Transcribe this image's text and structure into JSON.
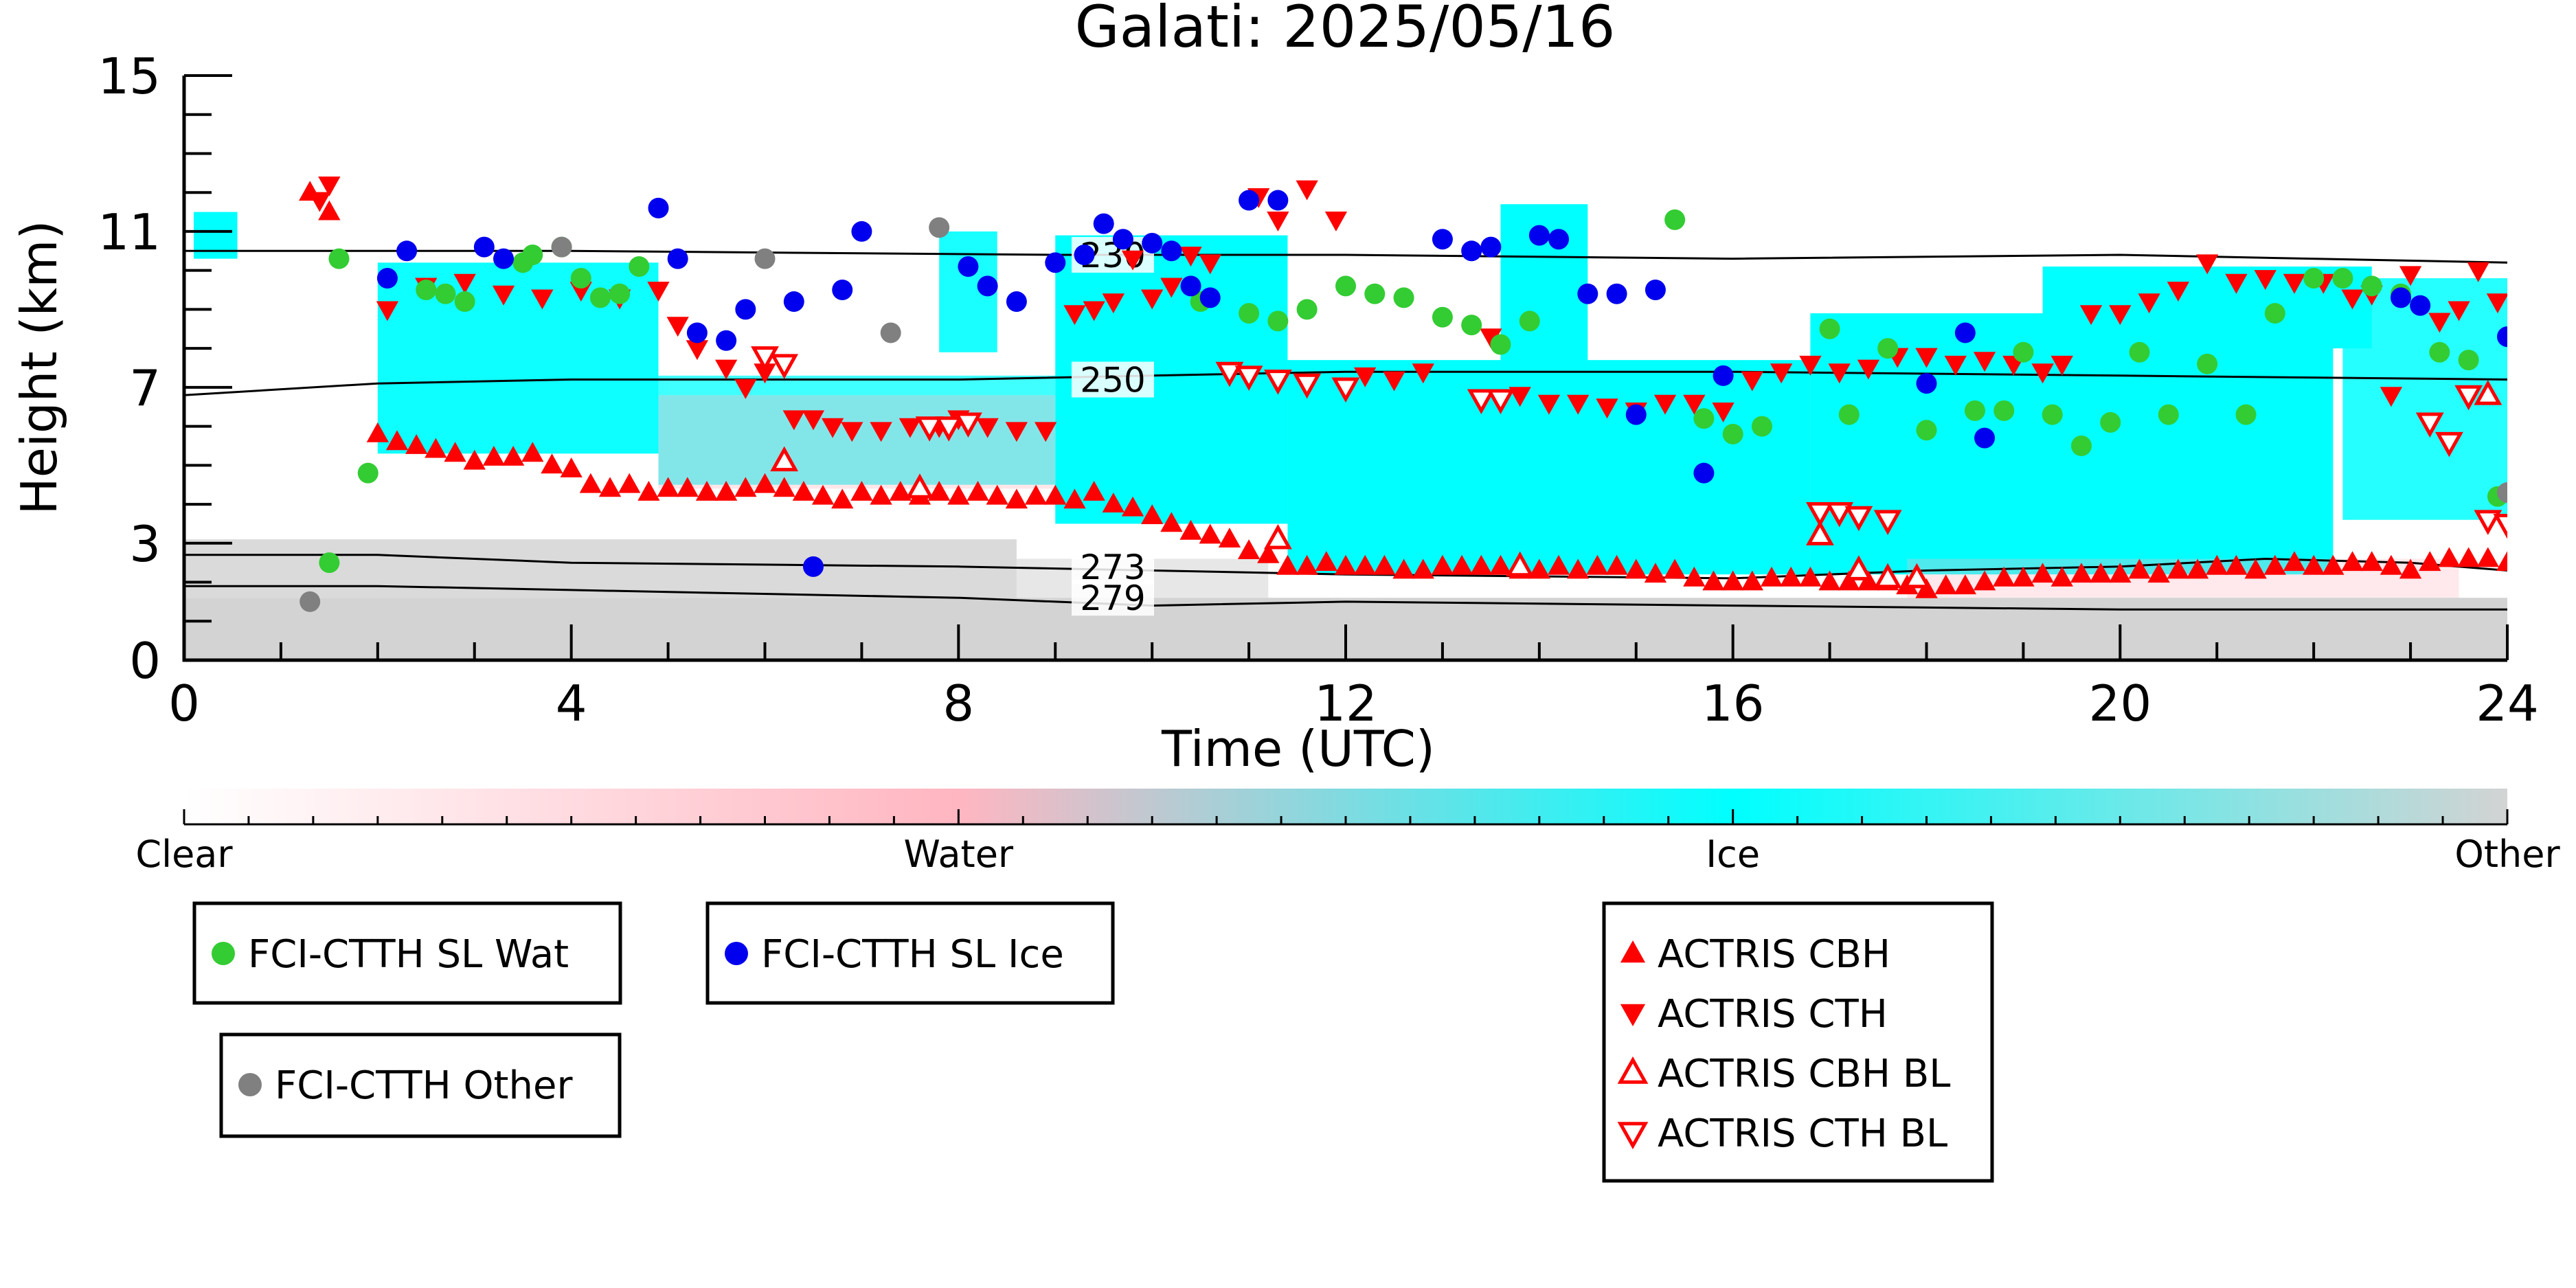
{
  "chart_data": {
    "type": "scatter",
    "title": "Galati: 2025/05/16",
    "xlabel": "Time (UTC)",
    "ylabel": "Height (km)",
    "xlim": [
      0,
      24
    ],
    "ylim": [
      0,
      15
    ],
    "x_ticks": [
      "0",
      "4",
      "8",
      "12",
      "16",
      "20",
      "24"
    ],
    "y_ticks": [
      "0",
      "3",
      "7",
      "11",
      "15"
    ],
    "grid": false,
    "colors": {
      "ice": "#00ffff",
      "water": "#ffb6c1",
      "other": "#d3d3d3",
      "fci_wat": "#33cc33",
      "fci_ice": "#0000ee",
      "fci_other": "#808080",
      "actris": "#ff0000"
    },
    "colorbar": {
      "labels": [
        "Clear",
        "Water",
        "Ice",
        "Other"
      ],
      "stops": [
        "#ffffff",
        "#ffb6c1",
        "#00ffff",
        "#d3d3d3"
      ]
    },
    "isotherms": [
      {
        "label": "230",
        "x": [
          0,
          4,
          9,
          12,
          16,
          20,
          24
        ],
        "y": [
          10.5,
          10.5,
          10.4,
          10.4,
          10.3,
          10.4,
          10.2
        ]
      },
      {
        "label": "250",
        "x": [
          0,
          2,
          4,
          8,
          10,
          12,
          14,
          16,
          20,
          24
        ],
        "y": [
          6.8,
          7.1,
          7.2,
          7.2,
          7.3,
          7.4,
          7.4,
          7.4,
          7.3,
          7.2
        ]
      },
      {
        "label": "273",
        "x": [
          0,
          2,
          4,
          8,
          10,
          12,
          16,
          18,
          20,
          21.5,
          23,
          24
        ],
        "y": [
          2.7,
          2.7,
          2.5,
          2.4,
          2.3,
          2.2,
          2.1,
          2.3,
          2.4,
          2.6,
          2.5,
          2.3
        ]
      },
      {
        "label": "279",
        "x": [
          0,
          2,
          4,
          8,
          10,
          12,
          16,
          20,
          24
        ],
        "y": [
          1.9,
          1.9,
          1.8,
          1.6,
          1.4,
          1.5,
          1.4,
          1.3,
          1.3
        ]
      }
    ],
    "series": [
      {
        "name": "FCI-CTTH SL Wat",
        "marker": "circle",
        "color": "#33cc33",
        "x": [
          1.5,
          1.6,
          1.9,
          2.5,
          2.7,
          2.9,
          3.5,
          3.6,
          3.9,
          4.1,
          4.3,
          4.5,
          4.7,
          10.5,
          11.0,
          11.3,
          11.6,
          12.0,
          12.3,
          12.6,
          13.0,
          13.3,
          13.6,
          13.9,
          15.4,
          15.7,
          16.0,
          16.3,
          17.0,
          17.2,
          17.6,
          18.0,
          18.5,
          18.8,
          19.0,
          19.3,
          19.6,
          19.9,
          20.2,
          20.5,
          20.9,
          21.3,
          21.6,
          22.0,
          22.3,
          22.6,
          22.9,
          23.3,
          23.6,
          23.9
        ],
        "y": [
          2.5,
          10.3,
          4.8,
          9.5,
          9.4,
          9.2,
          10.2,
          10.4,
          10.6,
          9.8,
          9.3,
          9.4,
          10.1,
          9.2,
          8.9,
          8.7,
          9.0,
          9.6,
          9.4,
          9.3,
          8.8,
          8.6,
          8.1,
          8.7,
          11.3,
          6.2,
          5.8,
          6.0,
          8.5,
          6.3,
          8.0,
          5.9,
          6.4,
          6.4,
          7.9,
          6.3,
          5.5,
          6.1,
          7.9,
          6.3,
          7.6,
          6.3,
          8.9,
          9.8,
          9.8,
          9.6,
          9.4,
          7.9,
          7.7,
          4.2
        ]
      },
      {
        "name": "FCI-CTTH SL Ice",
        "marker": "circle",
        "color": "#0000ee",
        "x": [
          2.1,
          2.3,
          3.1,
          3.3,
          4.9,
          5.1,
          5.3,
          5.6,
          5.8,
          6.3,
          6.5,
          6.8,
          7.0,
          8.1,
          8.3,
          8.6,
          9.0,
          9.3,
          9.5,
          9.7,
          10.0,
          10.2,
          10.4,
          10.6,
          11.0,
          11.3,
          13.0,
          13.3,
          13.5,
          14.0,
          14.2,
          14.5,
          14.8,
          15.0,
          15.2,
          15.7,
          15.9,
          18.0,
          18.4,
          18.6,
          22.9,
          23.1,
          24.0
        ],
        "y": [
          9.8,
          10.5,
          10.6,
          10.3,
          11.6,
          10.3,
          8.4,
          8.2,
          9.0,
          9.2,
          2.4,
          9.5,
          11.0,
          10.1,
          9.6,
          9.2,
          10.2,
          10.4,
          11.2,
          10.8,
          10.7,
          10.5,
          9.6,
          9.3,
          11.8,
          11.8,
          10.8,
          10.5,
          10.6,
          10.9,
          10.8,
          9.4,
          9.4,
          6.3,
          9.5,
          4.8,
          7.3,
          7.1,
          8.4,
          5.7,
          9.3,
          9.1,
          8.3
        ]
      },
      {
        "name": "FCI-CTTH Other",
        "marker": "circle",
        "color": "#808080",
        "x": [
          1.3,
          3.9,
          6.0,
          7.3,
          7.8,
          24.0
        ],
        "y": [
          1.5,
          10.6,
          10.3,
          8.4,
          11.1,
          4.3
        ]
      },
      {
        "name": "ACTRIS CBH",
        "marker": "triangle-up",
        "color": "#ff0000",
        "filled": true,
        "x": [
          1.3,
          1.5,
          2.0,
          2.2,
          2.4,
          2.6,
          2.8,
          3.0,
          3.2,
          3.4,
          3.6,
          3.8,
          4.0,
          4.2,
          4.4,
          4.6,
          4.8,
          5.0,
          5.2,
          5.4,
          5.6,
          5.8,
          6.0,
          6.2,
          6.4,
          6.6,
          6.8,
          7.0,
          7.2,
          7.4,
          7.6,
          7.8,
          8.0,
          8.2,
          8.4,
          8.6,
          8.8,
          9.0,
          9.2,
          9.4,
          9.6,
          9.8,
          10.0,
          10.2,
          10.4,
          10.6,
          10.8,
          11.0,
          11.2,
          11.4,
          11.6,
          11.8,
          12.0,
          12.2,
          12.4,
          12.6,
          12.8,
          13.0,
          13.2,
          13.4,
          13.6,
          13.8,
          14.0,
          14.2,
          14.4,
          14.6,
          14.8,
          15.0,
          15.2,
          15.4,
          15.6,
          15.8,
          16.0,
          16.2,
          16.4,
          16.6,
          16.8,
          17.0,
          17.2,
          17.4,
          17.6,
          17.8,
          18.0,
          18.2,
          18.4,
          18.6,
          18.8,
          19.0,
          19.2,
          19.4,
          19.6,
          19.8,
          20.0,
          20.2,
          20.4,
          20.6,
          20.8,
          21.0,
          21.2,
          21.4,
          21.6,
          21.8,
          22.0,
          22.2,
          22.4,
          22.6,
          22.8,
          23.0,
          23.2,
          23.4,
          23.6,
          23.8,
          24.0
        ],
        "y": [
          12.0,
          11.5,
          5.8,
          5.6,
          5.5,
          5.4,
          5.3,
          5.1,
          5.2,
          5.2,
          5.3,
          5.0,
          4.9,
          4.5,
          4.4,
          4.5,
          4.3,
          4.4,
          4.4,
          4.3,
          4.3,
          4.4,
          4.5,
          4.4,
          4.3,
          4.2,
          4.1,
          4.3,
          4.2,
          4.3,
          4.2,
          4.3,
          4.2,
          4.3,
          4.2,
          4.1,
          4.2,
          4.2,
          4.1,
          4.3,
          4.0,
          3.9,
          3.7,
          3.5,
          3.3,
          3.2,
          3.1,
          2.8,
          2.7,
          2.4,
          2.4,
          2.5,
          2.4,
          2.4,
          2.4,
          2.3,
          2.3,
          2.4,
          2.4,
          2.4,
          2.4,
          2.3,
          2.3,
          2.4,
          2.3,
          2.4,
          2.4,
          2.3,
          2.2,
          2.3,
          2.1,
          2.0,
          2.0,
          2.0,
          2.1,
          2.1,
          2.1,
          2.0,
          2.0,
          2.0,
          2.0,
          1.9,
          1.8,
          1.9,
          1.9,
          2.0,
          2.1,
          2.1,
          2.2,
          2.1,
          2.2,
          2.2,
          2.2,
          2.3,
          2.2,
          2.3,
          2.3,
          2.4,
          2.4,
          2.3,
          2.4,
          2.5,
          2.4,
          2.4,
          2.5,
          2.5,
          2.4,
          2.3,
          2.5,
          2.6,
          2.6,
          2.6,
          2.5
        ]
      },
      {
        "name": "ACTRIS CTH",
        "marker": "triangle-down",
        "color": "#ff0000",
        "filled": true,
        "x": [
          1.4,
          1.5,
          2.1,
          2.5,
          2.9,
          3.3,
          3.7,
          4.1,
          4.5,
          4.9,
          5.1,
          5.3,
          5.6,
          5.8,
          6.0,
          6.3,
          6.5,
          6.7,
          6.9,
          7.2,
          7.5,
          7.8,
          8.0,
          8.3,
          8.6,
          8.9,
          9.2,
          9.4,
          9.6,
          9.8,
          10.0,
          10.2,
          10.4,
          10.6,
          11.1,
          11.3,
          11.6,
          11.9,
          12.2,
          12.5,
          12.8,
          13.5,
          13.8,
          14.1,
          14.4,
          14.7,
          15.0,
          15.3,
          15.6,
          15.9,
          16.2,
          16.5,
          16.8,
          17.1,
          17.4,
          17.7,
          18.0,
          18.3,
          18.6,
          18.9,
          19.2,
          19.4,
          19.7,
          20.0,
          20.3,
          20.6,
          20.9,
          21.2,
          21.5,
          21.8,
          22.1,
          22.4,
          22.6,
          22.8,
          23.0,
          23.3,
          23.5,
          23.7,
          23.9
        ],
        "y": [
          11.8,
          12.2,
          9.0,
          9.6,
          9.7,
          9.4,
          9.3,
          9.5,
          9.3,
          9.5,
          8.6,
          8.0,
          7.5,
          7.0,
          7.4,
          6.2,
          6.2,
          6.0,
          5.9,
          5.9,
          6.0,
          6.0,
          6.2,
          6.0,
          5.9,
          5.9,
          8.9,
          9.0,
          9.2,
          10.3,
          9.3,
          9.6,
          10.4,
          10.2,
          11.9,
          11.3,
          12.1,
          11.3,
          7.3,
          7.2,
          7.4,
          8.3,
          6.8,
          6.6,
          6.6,
          6.5,
          6.4,
          6.6,
          6.6,
          6.4,
          7.2,
          7.4,
          7.6,
          7.4,
          7.5,
          7.8,
          7.8,
          7.6,
          7.7,
          7.6,
          7.4,
          7.6,
          8.9,
          8.9,
          9.2,
          9.5,
          10.2,
          9.7,
          9.8,
          9.7,
          9.7,
          9.3,
          9.4,
          6.8,
          9.9,
          8.7,
          9.0,
          10.0,
          9.2
        ]
      },
      {
        "name": "ACTRIS CBH BL",
        "marker": "triangle-up",
        "color": "#ff0000",
        "filled": false,
        "x": [
          6.2,
          7.6,
          11.3,
          13.8,
          16.9,
          17.3,
          17.6,
          17.9,
          23.8
        ],
        "y": [
          5.1,
          4.4,
          3.1,
          2.4,
          3.2,
          2.3,
          2.1,
          2.1,
          6.8
        ]
      },
      {
        "name": "ACTRIS CTH BL",
        "marker": "triangle-down",
        "color": "#ff0000",
        "filled": false,
        "x": [
          6.0,
          6.2,
          7.7,
          7.9,
          8.1,
          10.8,
          11.0,
          11.3,
          11.6,
          12.0,
          13.4,
          13.6,
          16.9,
          17.1,
          17.3,
          17.6,
          23.2,
          23.4,
          23.6,
          23.8,
          24.0
        ],
        "y": [
          7.8,
          7.6,
          6.0,
          6.0,
          6.1,
          7.4,
          7.3,
          7.2,
          7.1,
          7.0,
          6.7,
          6.7,
          3.8,
          3.8,
          3.7,
          3.6,
          6.1,
          5.6,
          6.8,
          3.6,
          3.5
        ]
      }
    ]
  }
}
